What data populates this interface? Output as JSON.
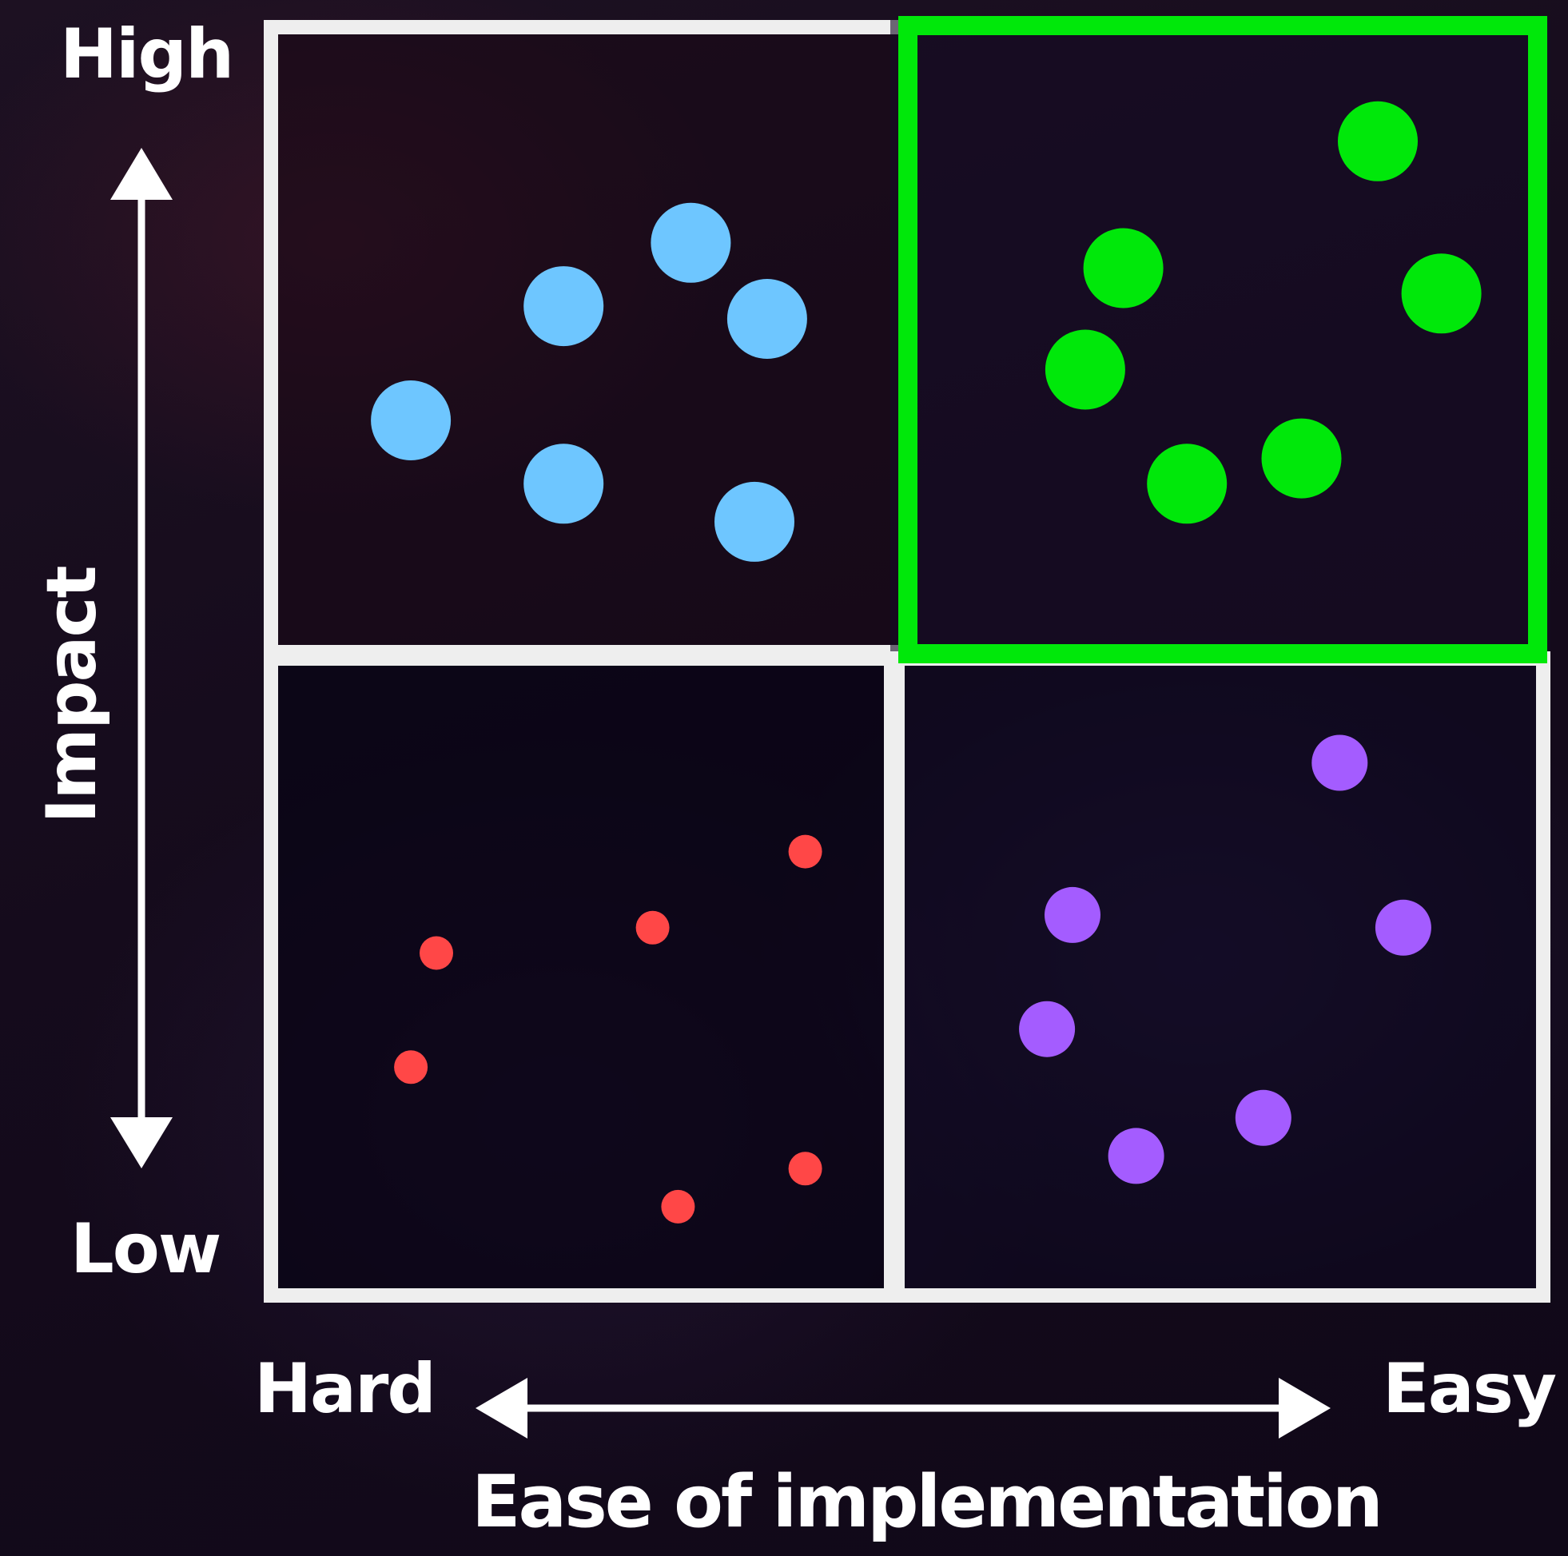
{
  "diagram": {
    "y_axis": {
      "title": "Impact",
      "high_label": "High",
      "low_label": "Low"
    },
    "x_axis": {
      "title": "Ease of implementation",
      "hard_label": "Hard",
      "easy_label": "Easy"
    },
    "highlight_color": "#00e80a",
    "frame_color": "#eeeeee"
  },
  "chart_data": {
    "type": "scatter",
    "title": "",
    "xlabel": "Ease of implementation",
    "ylabel": "Impact",
    "x_ends": [
      "Hard",
      "Easy"
    ],
    "y_ends": [
      "Low",
      "High"
    ],
    "xlim": [
      0,
      100
    ],
    "ylim": [
      0,
      100
    ],
    "grid": "2x2 quadrants",
    "highlighted_quadrant": "top-right",
    "series": [
      {
        "color": "#6ec6ff",
        "size": "large",
        "points": [
          [
            33,
            83
          ],
          [
            23,
            78
          ],
          [
            39,
            77
          ],
          [
            11,
            69
          ],
          [
            23,
            64
          ],
          [
            38,
            61
          ]
        ]
      },
      {
        "color": "#00e80a",
        "size": "large",
        "points": [
          [
            87,
            91
          ],
          [
            67,
            81
          ],
          [
            92,
            79
          ],
          [
            64,
            73
          ],
          [
            81,
            66
          ],
          [
            72,
            64
          ]
        ]
      },
      {
        "color": "#ff4747",
        "size": "small",
        "points": [
          [
            42,
            35
          ],
          [
            30,
            29
          ],
          [
            13,
            27
          ],
          [
            11,
            18
          ],
          [
            42,
            10
          ],
          [
            32,
            7
          ]
        ]
      },
      {
        "color": "#a45cff",
        "size": "medium",
        "points": [
          [
            84,
            42
          ],
          [
            63,
            30
          ],
          [
            89,
            29
          ],
          [
            61,
            21
          ],
          [
            78,
            14
          ],
          [
            68,
            11
          ]
        ]
      }
    ]
  }
}
